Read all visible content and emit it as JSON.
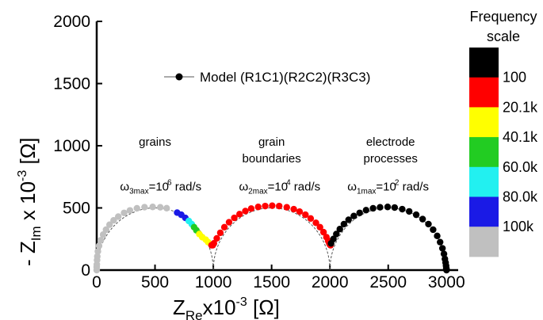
{
  "chart_data": {
    "type": "scatter",
    "title": "",
    "xlabel": {
      "main": "Z",
      "sub": "Re",
      "rest": "x10",
      "exp": "-3",
      "unit": "[Ω]"
    },
    "ylabel": {
      "main": "- Z",
      "sub": "Im",
      "rest": " x 10",
      "exp": "-3",
      "unit": "[Ω]"
    },
    "xlim": [
      0,
      3100
    ],
    "ylim": [
      0,
      2000
    ],
    "xticks": [
      0,
      500,
      1000,
      1500,
      2000,
      2500,
      3000
    ],
    "yticks": [
      0,
      500,
      1000,
      1500,
      2000
    ],
    "grid": false,
    "legend": {
      "label": "Model (R1C1)(R2C2)(R3C3)",
      "position": "top-center"
    },
    "arcs": [
      {
        "center": 500,
        "radius": 500,
        "peak_angle": 96
      },
      {
        "center": 1500,
        "radius": 500,
        "peak_angle": 82
      },
      {
        "center": 2500,
        "radius": 500,
        "peak_angle": 85
      }
    ],
    "annotations": {
      "regions": [
        {
          "lines": [
            "grains"
          ],
          "x": 500,
          "y": 1000
        },
        {
          "lines": [
            "grain",
            "boundaries"
          ],
          "x": 1500,
          "y": 1000
        },
        {
          "lines": [
            "electrode",
            "processes"
          ],
          "x": 2520,
          "y": 1000
        }
      ],
      "omegas": [
        {
          "omega": "ω",
          "sub": "3max",
          "base": "=10",
          "exp": "6",
          "unit": " rad/s",
          "x": 200,
          "y": 640
        },
        {
          "omega": "ω",
          "sub": "2max",
          "base": "=10",
          "exp": "4",
          "unit": " rad/s",
          "x": 1220,
          "y": 640
        },
        {
          "omega": "ω",
          "sub": "1max",
          "base": "=10",
          "exp": "2",
          "unit": " rad/s",
          "x": 2150,
          "y": 640
        }
      ]
    },
    "points": {
      "arc1_grey": [
        [
          0,
          0
        ],
        [
          0,
          25
        ],
        [
          1,
          45
        ],
        [
          3,
          80
        ],
        [
          5,
          110
        ],
        [
          10,
          150
        ],
        [
          20,
          195
        ],
        [
          35,
          240
        ],
        [
          55,
          285
        ],
        [
          80,
          325
        ],
        [
          110,
          365
        ],
        [
          145,
          400
        ],
        [
          185,
          430
        ],
        [
          235,
          460
        ],
        [
          285,
          480
        ],
        [
          345,
          497
        ],
        [
          410,
          506
        ],
        [
          480,
          508
        ],
        [
          545,
          505
        ],
        [
          600,
          498
        ]
      ],
      "arc1_blue": [
        [
          690,
          462
        ],
        [
          725,
          445
        ],
        [
          760,
          420
        ]
      ],
      "arc1_cyan": [
        [
          790,
          395
        ],
        [
          815,
          370
        ]
      ],
      "arc1_green": [
        [
          835,
          345
        ],
        [
          855,
          320
        ]
      ],
      "arc1_yellow": [
        [
          880,
          290
        ],
        [
          905,
          265
        ],
        [
          935,
          245
        ],
        [
          955,
          225
        ]
      ],
      "arc1_red": [
        [
          985,
          200
        ],
        [
          995,
          200
        ]
      ],
      "arc2_red": [
        [
          1005,
          215
        ],
        [
          1030,
          255
        ],
        [
          1060,
          300
        ],
        [
          1095,
          345
        ],
        [
          1135,
          385
        ],
        [
          1180,
          420
        ],
        [
          1225,
          450
        ],
        [
          1275,
          475
        ],
        [
          1325,
          495
        ],
        [
          1385,
          508
        ],
        [
          1445,
          515
        ],
        [
          1505,
          518
        ],
        [
          1565,
          515
        ],
        [
          1630,
          505
        ],
        [
          1690,
          490
        ],
        [
          1740,
          470
        ],
        [
          1790,
          445
        ],
        [
          1835,
          415
        ],
        [
          1880,
          380
        ],
        [
          1915,
          345
        ],
        [
          1945,
          305
        ],
        [
          1970,
          265
        ],
        [
          1985,
          235
        ],
        [
          1995,
          215
        ],
        [
          2000,
          205
        ],
        [
          2005,
          200
        ]
      ],
      "arc3_black": [
        [
          2010,
          215
        ],
        [
          2030,
          250
        ],
        [
          2055,
          290
        ],
        [
          2085,
          330
        ],
        [
          2120,
          370
        ],
        [
          2160,
          405
        ],
        [
          2205,
          435
        ],
        [
          2255,
          460
        ],
        [
          2310,
          482
        ],
        [
          2370,
          497
        ],
        [
          2430,
          505
        ],
        [
          2495,
          508
        ],
        [
          2555,
          503
        ],
        [
          2620,
          490
        ],
        [
          2680,
          472
        ],
        [
          2740,
          445
        ],
        [
          2795,
          410
        ],
        [
          2845,
          370
        ],
        [
          2885,
          325
        ],
        [
          2920,
          275
        ],
        [
          2945,
          225
        ],
        [
          2965,
          175
        ],
        [
          2978,
          130
        ],
        [
          2986,
          90
        ],
        [
          2992,
          60
        ],
        [
          2996,
          35
        ],
        [
          2998,
          15
        ],
        [
          3000,
          5
        ],
        [
          3000,
          0
        ]
      ]
    },
    "point_colors": {
      "arc1_grey": "#c0c0c0",
      "arc1_blue": "#1a1ae6",
      "arc1_cyan": "#22f0f0",
      "arc1_green": "#22cc22",
      "arc1_yellow": "#ffff00",
      "arc1_red": "#ff0000",
      "arc2_red": "#ff0000",
      "arc3_black": "#000000"
    }
  },
  "frequency_scale": {
    "title_line1": "Frequency",
    "title_line2": "scale",
    "bands": [
      {
        "color": "#000000",
        "label": "100"
      },
      {
        "color": "#ff0000",
        "label": "20.1k"
      },
      {
        "color": "#ffff00",
        "label": "40.1k"
      },
      {
        "color": "#22cc22",
        "label": "60.0k"
      },
      {
        "color": "#22f0f0",
        "label": "80.0k"
      },
      {
        "color": "#1a1ae6",
        "label": "100k"
      },
      {
        "color": "#c0c0c0",
        "label": ""
      }
    ]
  }
}
